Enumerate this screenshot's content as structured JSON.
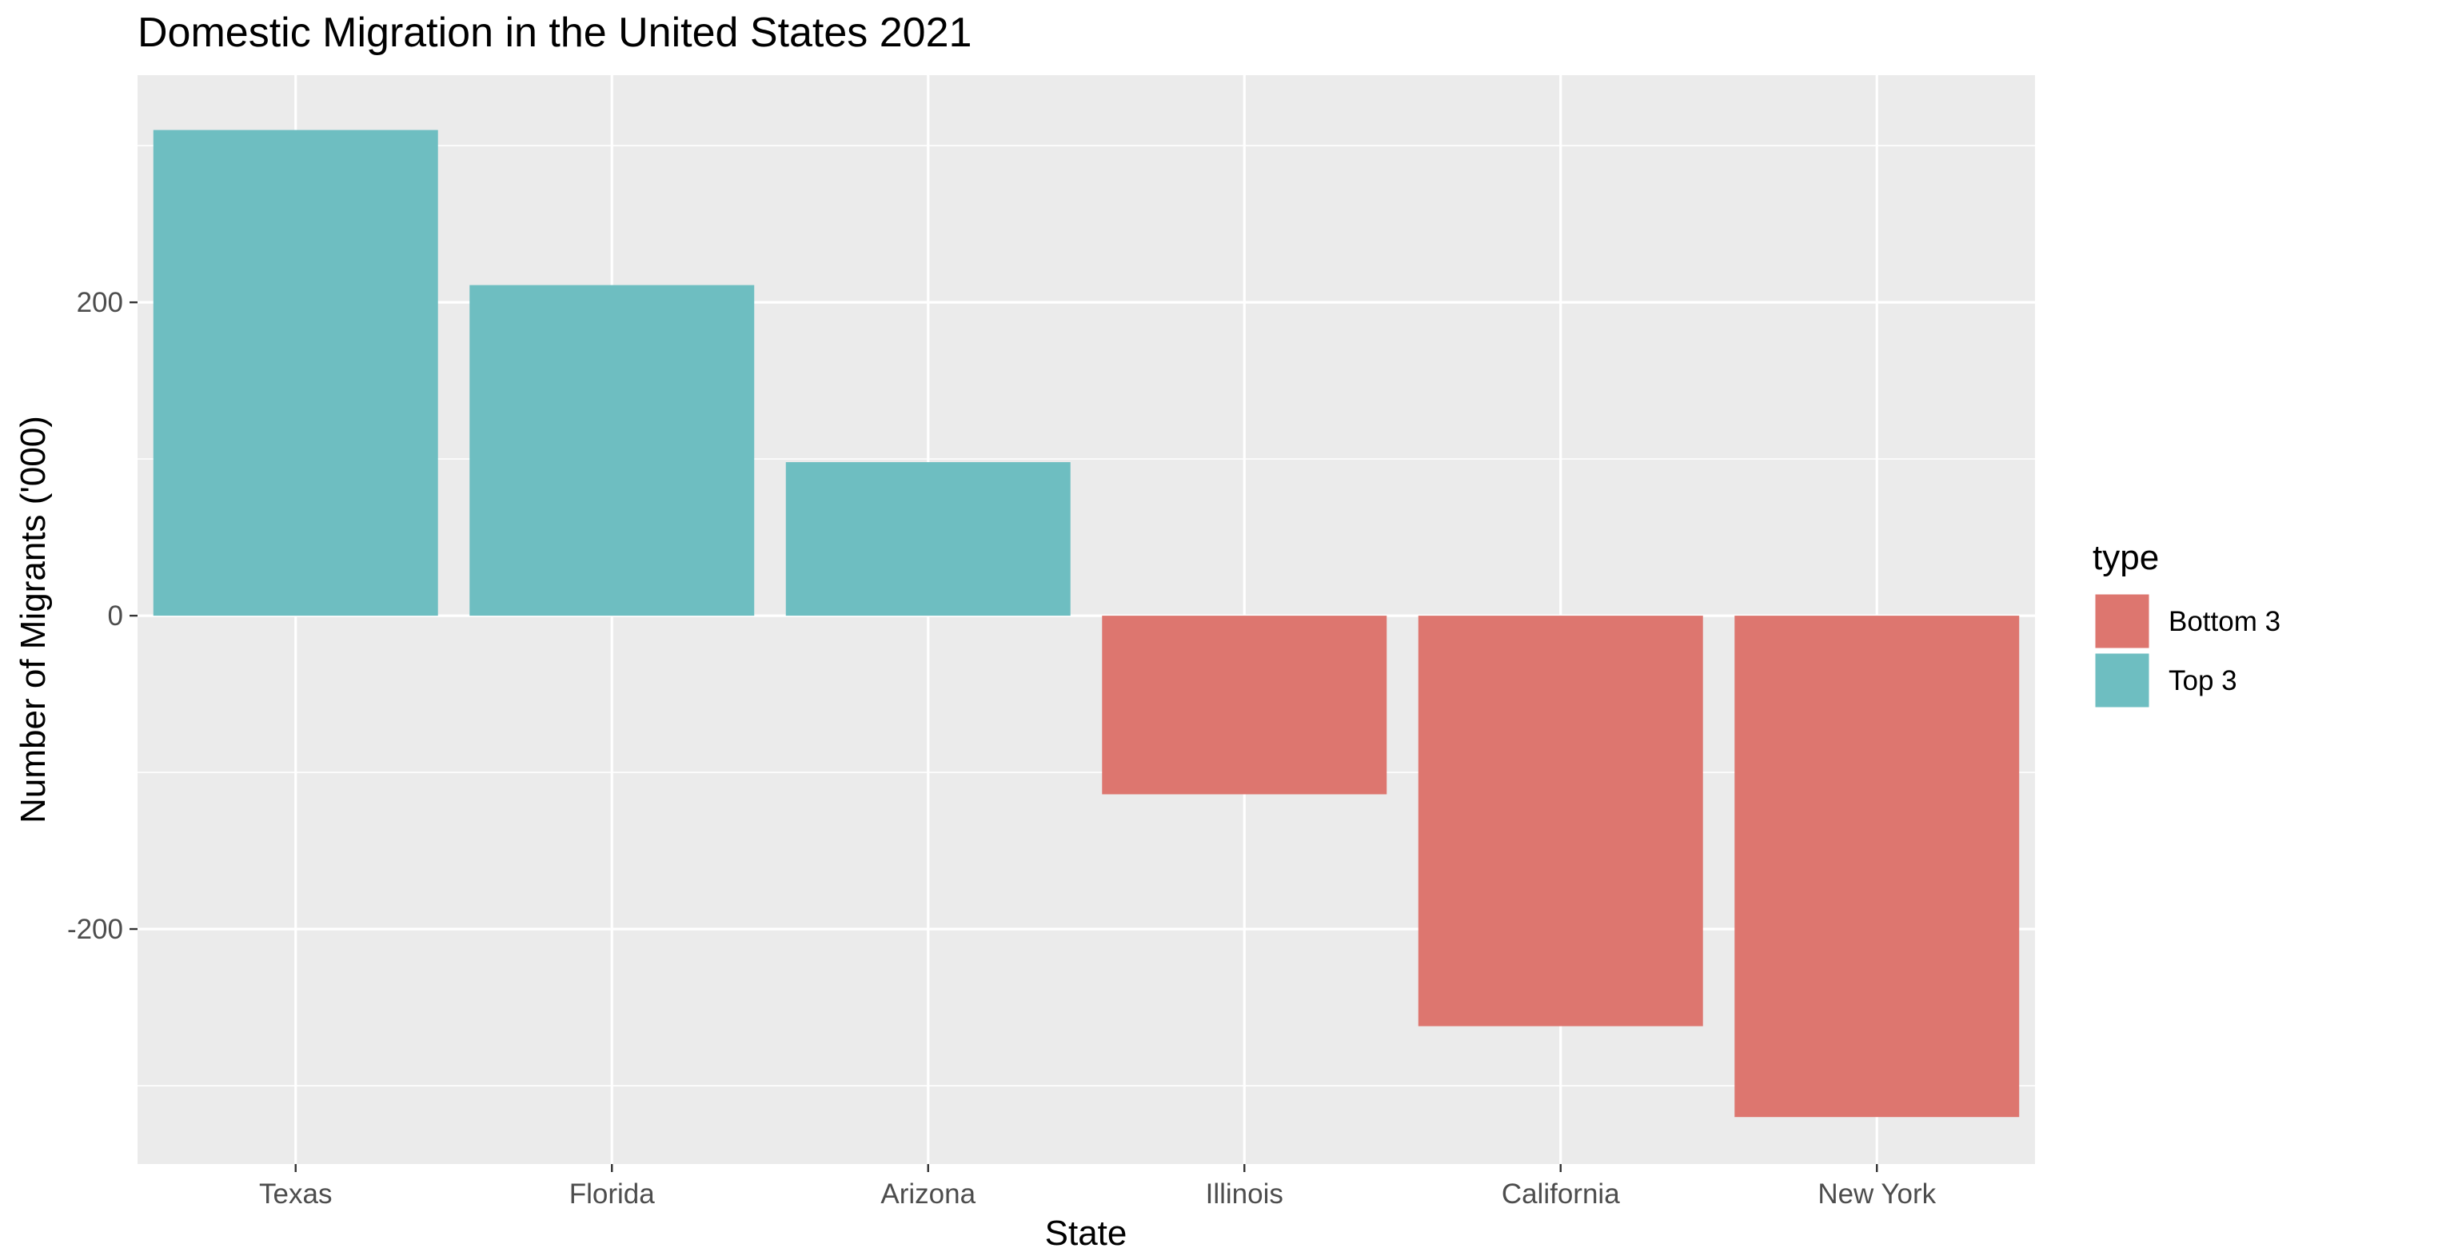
{
  "chart_data": {
    "type": "bar",
    "title": "Domestic Migration in the United States 2021",
    "xlabel": "State",
    "ylabel": "Number of Migrants ('000)",
    "categories": [
      "Texas",
      "Florida",
      "Arizona",
      "Illinois",
      "California",
      "New York"
    ],
    "values": [
      310,
      211,
      98,
      -114,
      -262,
      -320
    ],
    "groups": [
      "Top 3",
      "Top 3",
      "Top 3",
      "Bottom 3",
      "Bottom 3",
      "Bottom 3"
    ],
    "ylim": [
      -350,
      345
    ],
    "yticks": [
      -200,
      0,
      200
    ],
    "ytick_labels": [
      "-200",
      "0",
      "200"
    ],
    "grid": true,
    "legend": {
      "title": "type",
      "placement": "right",
      "entries": [
        {
          "label": "Bottom 3",
          "color": "#dd766f"
        },
        {
          "label": "Top 3",
          "color": "#6ebec1"
        }
      ]
    },
    "colors": {
      "Top 3": "#6ebec1",
      "Bottom 3": "#dd766f",
      "panel": "#ebebeb",
      "grid": "#ffffff"
    }
  }
}
